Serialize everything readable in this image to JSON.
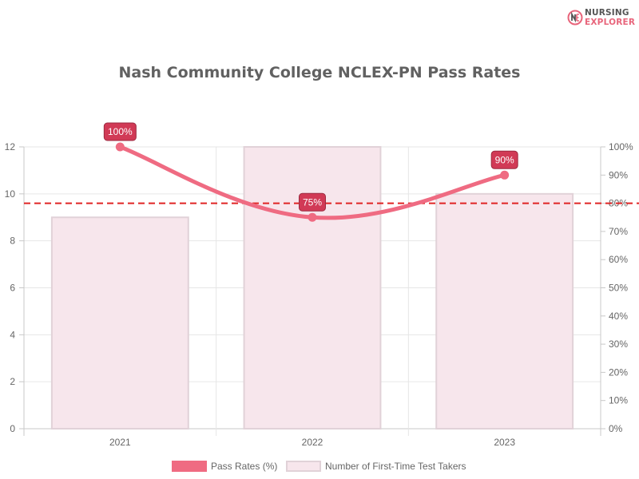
{
  "logo": {
    "icon": "nursing-explorer-logo",
    "line1": "NURSING",
    "line2": "EXPLORER"
  },
  "chart_data": {
    "type": "bar",
    "title": "Nash Community College NCLEX-PN Pass Rates",
    "categories": [
      "2021",
      "2022",
      "2023"
    ],
    "series": [
      {
        "name": "Pass Rates (%)",
        "type": "line",
        "axis": "right",
        "values": [
          100,
          75,
          90
        ],
        "labels": [
          "100%",
          "75%",
          "90%"
        ],
        "color": "#ef6b82"
      },
      {
        "name": "Number of First-Time Test Takers",
        "type": "bar",
        "axis": "left",
        "values": [
          9,
          12,
          10
        ],
        "color": "#f7e6ec",
        "border": "#e1d2d8"
      }
    ],
    "left_axis": {
      "ylim": [
        0,
        12
      ],
      "ticks": [
        "0",
        "2",
        "4",
        "6",
        "8",
        "10",
        "12"
      ]
    },
    "right_axis": {
      "ylim": [
        0,
        100
      ],
      "ticks": [
        "0%",
        "10%",
        "20%",
        "30%",
        "40%",
        "50%",
        "60%",
        "70%",
        "80%",
        "90%",
        "100%"
      ]
    },
    "reference_line": {
      "value": 80,
      "axis": "right",
      "style": "dashed",
      "color": "#e02424"
    },
    "grid": true,
    "legend_position": "bottom",
    "label_badge_color": "#d13a56"
  }
}
